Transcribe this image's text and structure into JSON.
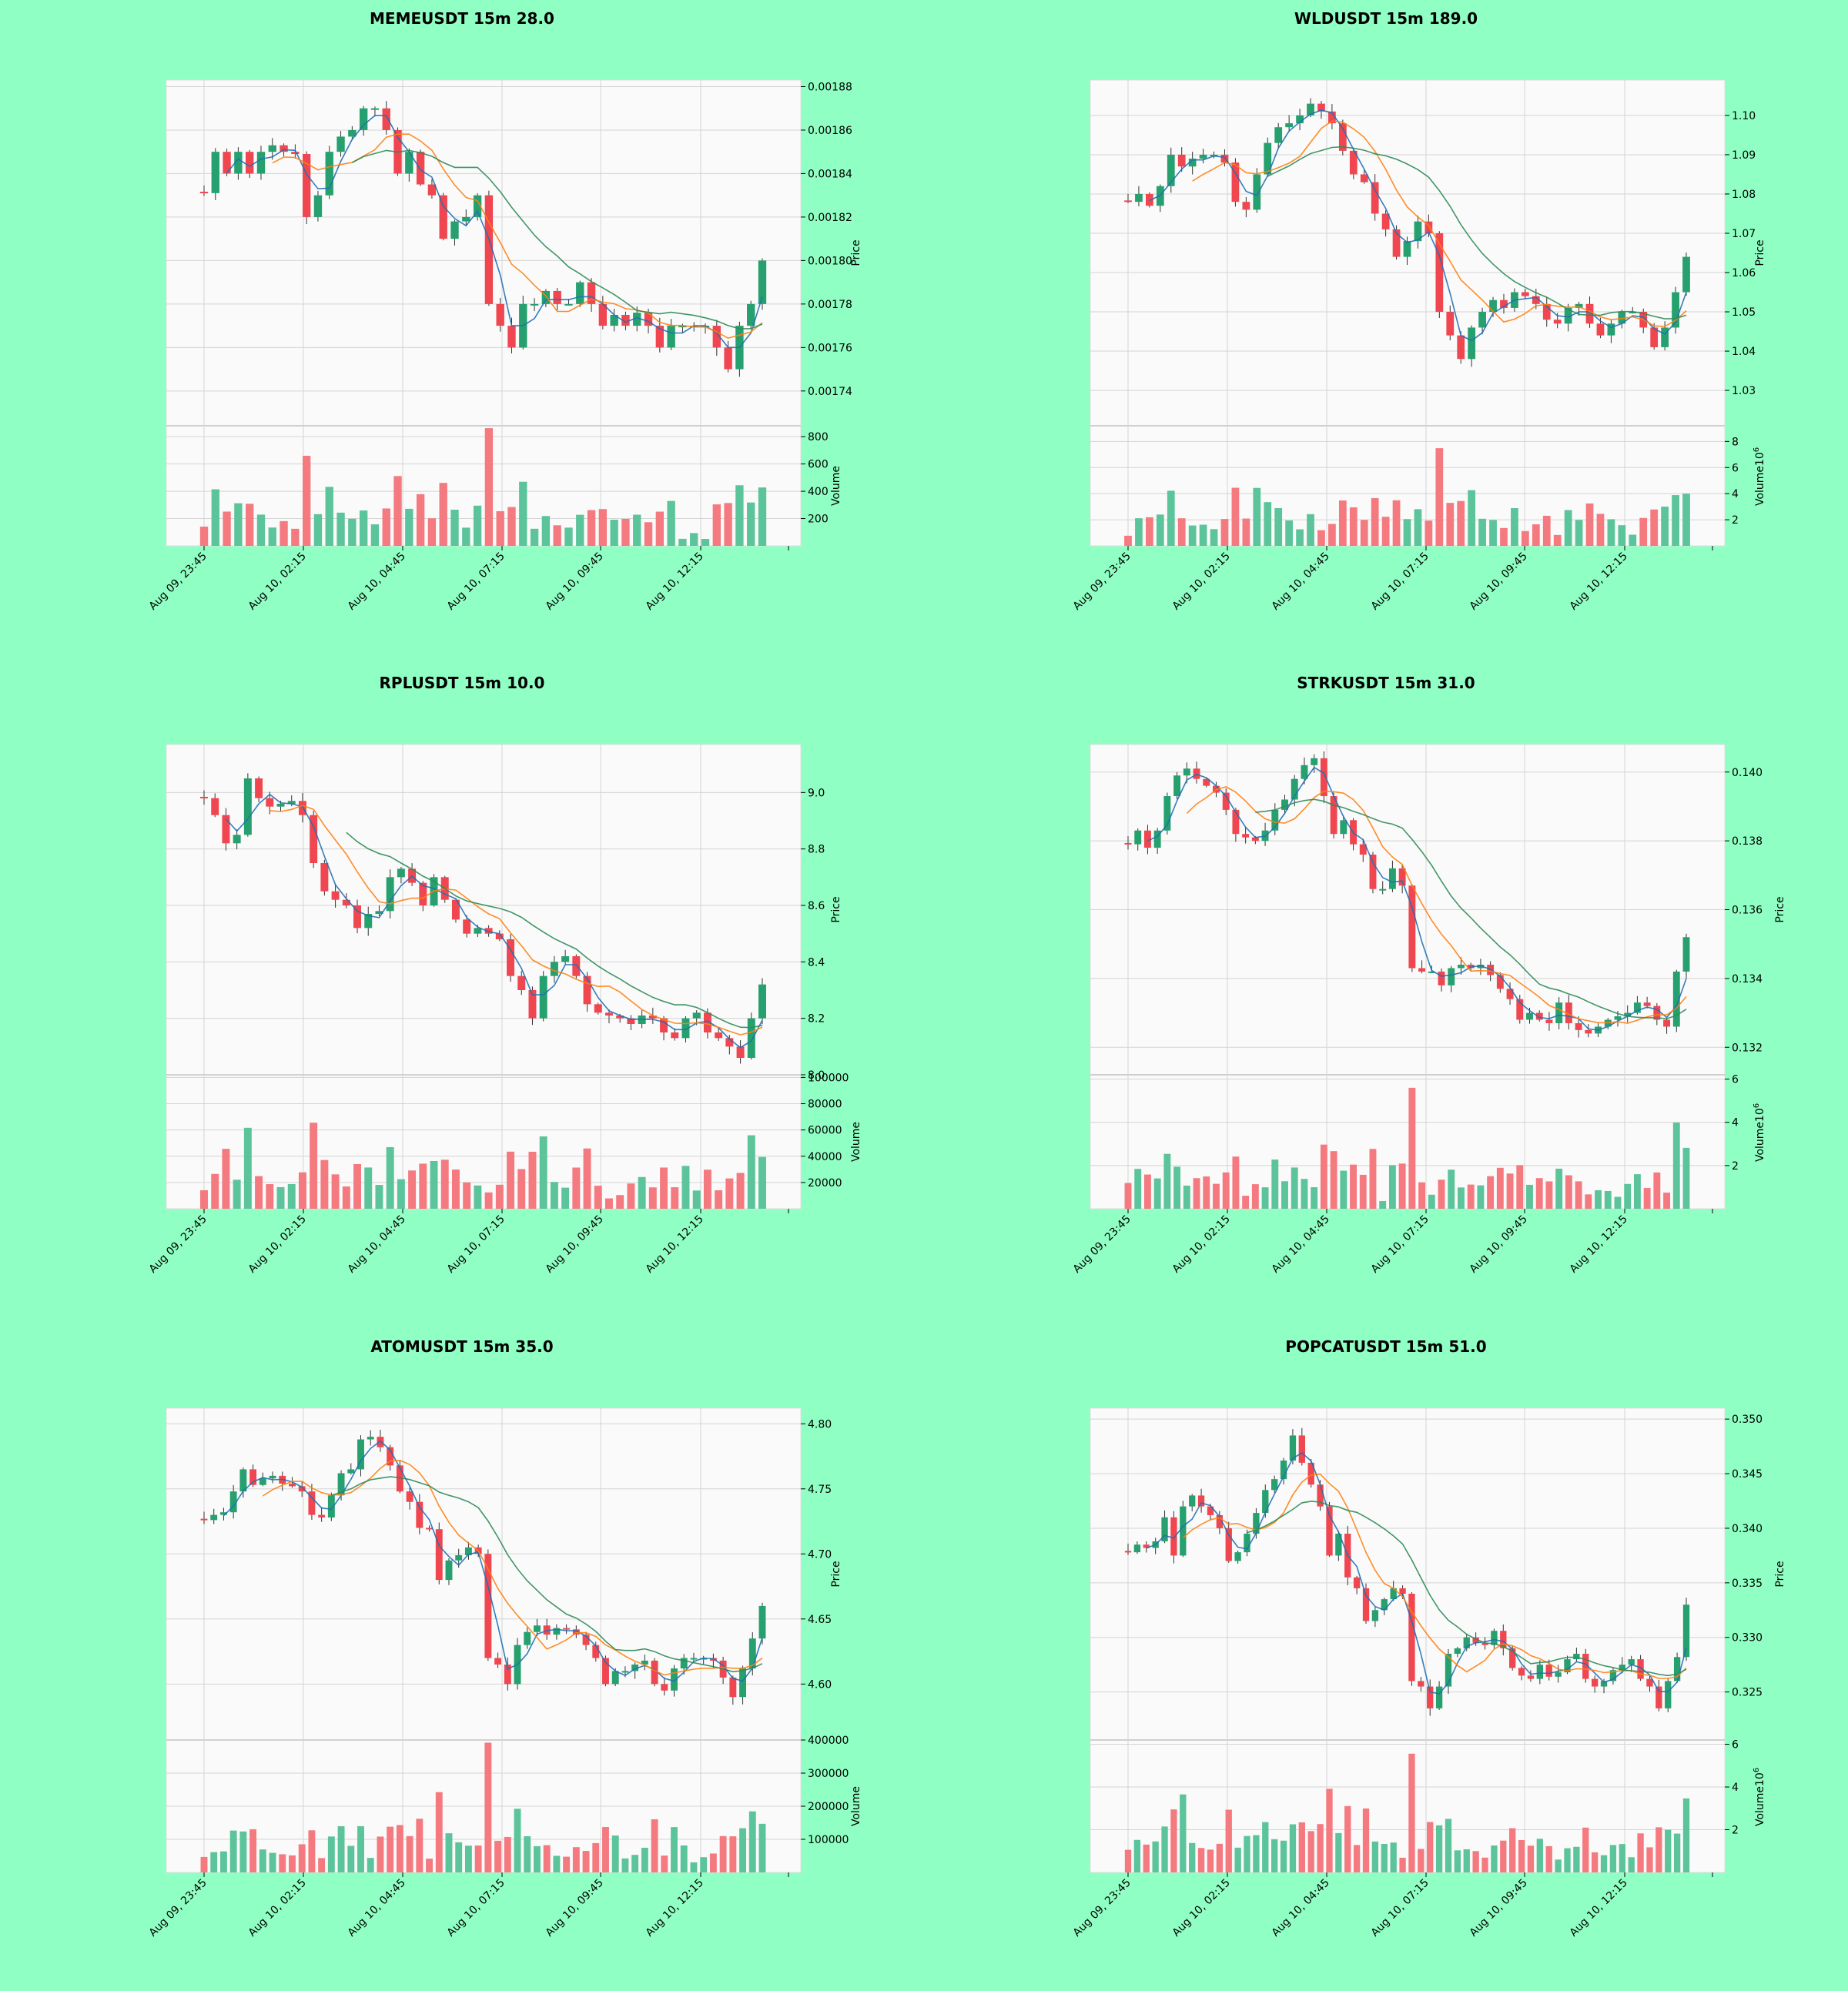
{
  "figure": {
    "background": "#8fffc3",
    "panel_background": "#fafafa",
    "up_color": "#26a06e",
    "down_color": "#ef4650",
    "up_volume_color": "#5cc49b",
    "down_volume_color": "#f47a80",
    "ma_colors": [
      "#1f6fb4",
      "#ff7f0e",
      "#2e8b57"
    ]
  },
  "chart_data": [
    {
      "type": "candlestick",
      "title": "MEMEUSDT 15m 28.0",
      "ylabel": "Price",
      "volume_label": "Volume",
      "volume_exponent": "",
      "x_tick_labels": [
        "Aug 09, 23:45",
        "Aug 10, 02:15",
        "Aug 10, 04:45",
        "Aug 10, 07:15",
        "Aug 10, 09:45",
        "Aug 10, 12:15"
      ],
      "price_ticks": [
        "0.00174",
        "0.00176",
        "0.00178",
        "0.00180",
        "0.00182",
        "0.00184",
        "0.00186",
        "0.00188"
      ],
      "price_tick_values": [
        0.00174,
        0.00176,
        0.00178,
        0.0018,
        0.00182,
        0.00184,
        0.00186,
        0.00188
      ],
      "price_range": [
        0.001724,
        0.001883
      ],
      "volume_ticks": [
        "200",
        "400",
        "600",
        "800"
      ],
      "volume_tick_values": [
        200,
        400,
        600,
        800
      ],
      "volume_range": [
        0,
        880
      ],
      "close": [
        0.001831,
        0.00185,
        0.00184,
        0.00185,
        0.00184,
        0.00185,
        0.001853,
        0.00185,
        0.001849,
        0.00182,
        0.00183,
        0.00185,
        0.001857,
        0.00186,
        0.00187,
        0.00187,
        0.00186,
        0.00184,
        0.00185,
        0.001835,
        0.00183,
        0.00181,
        0.001818,
        0.00182,
        0.00183,
        0.00178,
        0.00177,
        0.00176,
        0.00178,
        0.00178,
        0.001786,
        0.00178,
        0.00178,
        0.00179,
        0.00178,
        0.00177,
        0.001775,
        0.00177,
        0.001776,
        0.00177,
        0.00176,
        0.00177,
        0.00177,
        0.00177,
        0.00177,
        0.00176,
        0.00175,
        0.00177,
        0.00178,
        0.0018
      ]
    },
    {
      "type": "candlestick",
      "title": "WLDUSDT 15m 189.0",
      "ylabel": "Price",
      "volume_label": "Volume",
      "volume_exponent": "6",
      "x_tick_labels": [
        "Aug 09, 23:45",
        "Aug 10, 02:15",
        "Aug 10, 04:45",
        "Aug 10, 07:15",
        "Aug 10, 09:45",
        "Aug 10, 12:15"
      ],
      "price_ticks": [
        "1.03",
        "1.04",
        "1.05",
        "1.06",
        "1.07",
        "1.08",
        "1.09",
        "1.10"
      ],
      "price_tick_values": [
        1.03,
        1.04,
        1.05,
        1.06,
        1.07,
        1.08,
        1.09,
        1.1
      ],
      "price_range": [
        1.021,
        1.109
      ],
      "volume_ticks": [
        "2",
        "4",
        "6",
        "8"
      ],
      "volume_tick_values": [
        2,
        4,
        6,
        8
      ],
      "volume_range": [
        0,
        9.2
      ],
      "close": [
        1.078,
        1.08,
        1.077,
        1.082,
        1.09,
        1.087,
        1.089,
        1.09,
        1.09,
        1.088,
        1.078,
        1.076,
        1.085,
        1.093,
        1.097,
        1.098,
        1.1,
        1.103,
        1.101,
        1.098,
        1.091,
        1.085,
        1.083,
        1.075,
        1.071,
        1.064,
        1.068,
        1.073,
        1.07,
        1.05,
        1.044,
        1.038,
        1.046,
        1.05,
        1.053,
        1.051,
        1.055,
        1.054,
        1.052,
        1.048,
        1.047,
        1.051,
        1.052,
        1.047,
        1.044,
        1.047,
        1.05,
        1.05,
        1.046,
        1.041,
        1.046,
        1.055,
        1.064
      ]
    },
    {
      "type": "candlestick",
      "title": "RPLUSDT 15m 10.0",
      "ylabel": "Price",
      "volume_label": "Volume",
      "volume_exponent": "",
      "x_tick_labels": [
        "Aug 09, 23:45",
        "Aug 10, 02:15",
        "Aug 10, 04:45",
        "Aug 10, 07:15",
        "Aug 10, 09:45",
        "Aug 10, 12:15"
      ],
      "price_ticks": [
        "8.0",
        "8.2",
        "8.4",
        "8.6",
        "8.8",
        "9.0"
      ],
      "price_tick_values": [
        8.0,
        8.2,
        8.4,
        8.6,
        8.8,
        9.0
      ],
      "price_range": [
        8.0,
        9.17
      ],
      "volume_ticks": [
        "20000",
        "40000",
        "60000",
        "80000",
        "100000"
      ],
      "volume_tick_values": [
        20000,
        40000,
        60000,
        80000,
        100000
      ],
      "volume_range": [
        0,
        102000
      ],
      "close": [
        8.98,
        8.92,
        8.82,
        8.85,
        9.05,
        8.98,
        8.95,
        8.96,
        8.97,
        8.92,
        8.75,
        8.65,
        8.62,
        8.6,
        8.52,
        8.57,
        8.58,
        8.7,
        8.73,
        8.68,
        8.6,
        8.7,
        8.62,
        8.55,
        8.5,
        8.52,
        8.5,
        8.48,
        8.35,
        8.3,
        8.2,
        8.35,
        8.4,
        8.42,
        8.35,
        8.25,
        8.22,
        8.21,
        8.2,
        8.18,
        8.21,
        8.2,
        8.15,
        8.13,
        8.2,
        8.22,
        8.15,
        8.13,
        8.1,
        8.06,
        8.2,
        8.32
      ]
    },
    {
      "type": "candlestick",
      "title": "STRKUSDT 15m 31.0",
      "ylabel": "Price",
      "volume_label": "Volume",
      "volume_exponent": "6",
      "x_tick_labels": [
        "Aug 09, 23:45",
        "Aug 10, 02:15",
        "Aug 10, 04:45",
        "Aug 10, 07:15",
        "Aug 10, 09:45",
        "Aug 10, 12:15"
      ],
      "price_ticks": [
        "0.132",
        "0.134",
        "0.136",
        "0.138",
        "0.140"
      ],
      "price_tick_values": [
        0.132,
        0.134,
        0.136,
        0.138,
        0.14
      ],
      "price_range": [
        0.1312,
        0.1408
      ],
      "volume_ticks": [
        "2",
        "4",
        "6"
      ],
      "volume_tick_values": [
        2,
        4,
        6
      ],
      "volume_range": [
        0,
        6.2
      ],
      "close": [
        0.1379,
        0.1383,
        0.1378,
        0.1383,
        0.1393,
        0.1399,
        0.1401,
        0.1398,
        0.1396,
        0.1394,
        0.1389,
        0.1382,
        0.1381,
        0.138,
        0.1383,
        0.1389,
        0.1392,
        0.1398,
        0.1402,
        0.1404,
        0.1393,
        0.1382,
        0.1386,
        0.1379,
        0.1376,
        0.1366,
        0.1366,
        0.1372,
        0.1367,
        0.1343,
        0.1342,
        0.1342,
        0.1338,
        0.1343,
        0.1344,
        0.1343,
        0.1344,
        0.1341,
        0.1337,
        0.1334,
        0.1328,
        0.133,
        0.1328,
        0.1327,
        0.1333,
        0.1327,
        0.1325,
        0.1324,
        0.1326,
        0.1328,
        0.1329,
        0.133,
        0.1333,
        0.1332,
        0.1328,
        0.1326,
        0.1342,
        0.1352
      ]
    },
    {
      "type": "candlestick",
      "title": "ATOMUSDT 15m 35.0",
      "ylabel": "Price",
      "volume_label": "Volume",
      "volume_exponent": "",
      "x_tick_labels": [
        "Aug 09, 23:45",
        "Aug 10, 02:15",
        "Aug 10, 04:45",
        "Aug 10, 07:15",
        "Aug 10, 09:45",
        "Aug 10, 12:15"
      ],
      "price_ticks": [
        "4.60",
        "4.65",
        "4.70",
        "4.75",
        "4.80"
      ],
      "price_tick_values": [
        4.6,
        4.65,
        4.7,
        4.75,
        4.8
      ],
      "price_range": [
        4.557,
        4.812
      ],
      "volume_ticks": [
        "100000",
        "200000",
        "300000",
        "400000"
      ],
      "volume_tick_values": [
        100000,
        200000,
        300000,
        400000
      ],
      "volume_range": [
        0,
        400000
      ],
      "close": [
        4.726,
        4.73,
        4.732,
        4.748,
        4.765,
        4.753,
        4.758,
        4.76,
        4.754,
        4.752,
        4.748,
        4.73,
        4.728,
        4.745,
        4.762,
        4.765,
        4.788,
        4.79,
        4.782,
        4.768,
        4.748,
        4.74,
        4.72,
        4.719,
        4.68,
        4.695,
        4.699,
        4.705,
        4.7,
        4.62,
        4.615,
        4.6,
        4.63,
        4.64,
        4.645,
        4.638,
        4.643,
        4.642,
        4.638,
        4.63,
        4.62,
        4.6,
        4.61,
        4.61,
        4.615,
        4.618,
        4.6,
        4.595,
        4.612,
        4.62,
        4.62,
        4.62,
        4.618,
        4.605,
        4.59,
        4.612,
        4.635,
        4.66
      ]
    },
    {
      "type": "candlestick",
      "title": "POPCATUSDT 15m 51.0",
      "ylabel": "Price",
      "volume_label": "Volume",
      "volume_exponent": "6",
      "x_tick_labels": [
        "Aug 09, 23:45",
        "Aug 10, 02:15",
        "Aug 10, 04:45",
        "Aug 10, 07:15",
        "Aug 10, 09:45",
        "Aug 10, 12:15"
      ],
      "price_ticks": [
        "0.325",
        "0.330",
        "0.335",
        "0.340",
        "0.345",
        "0.350"
      ],
      "price_tick_values": [
        0.325,
        0.33,
        0.335,
        0.34,
        0.345,
        0.35
      ],
      "price_range": [
        0.3206,
        0.351
      ],
      "volume_ticks": [
        "2",
        "4",
        "6"
      ],
      "volume_tick_values": [
        2,
        4,
        6
      ],
      "volume_range": [
        0,
        6.2
      ],
      "close": [
        0.3378,
        0.3385,
        0.3382,
        0.3388,
        0.341,
        0.3375,
        0.342,
        0.343,
        0.342,
        0.3412,
        0.34,
        0.337,
        0.3378,
        0.3395,
        0.3414,
        0.3435,
        0.3445,
        0.3462,
        0.3485,
        0.346,
        0.344,
        0.342,
        0.3375,
        0.3395,
        0.3355,
        0.3345,
        0.3315,
        0.3325,
        0.3335,
        0.3345,
        0.334,
        0.326,
        0.3255,
        0.3235,
        0.3255,
        0.3285,
        0.329,
        0.33,
        0.3295,
        0.3293,
        0.3306,
        0.329,
        0.3272,
        0.3265,
        0.3262,
        0.3275,
        0.3264,
        0.3268,
        0.328,
        0.3285,
        0.3262,
        0.3255,
        0.326,
        0.327,
        0.3275,
        0.328,
        0.3262,
        0.3255,
        0.3235,
        0.326,
        0.3282,
        0.333
      ]
    }
  ]
}
